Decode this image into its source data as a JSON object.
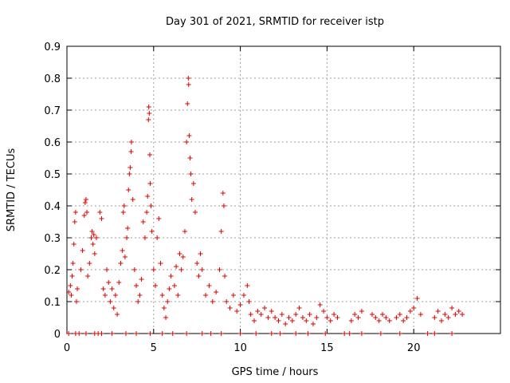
{
  "chart_data": {
    "type": "scatter",
    "title": "Day 301 of 2021, SRMTID for receiver istp",
    "xlabel": "GPS time / hours",
    "ylabel": "SRMTID / TECUs",
    "xlim": [
      0,
      25
    ],
    "ylim": [
      0,
      0.9
    ],
    "xticks": [
      0,
      5,
      10,
      15,
      20
    ],
    "xtick_labels": [
      "0",
      "5",
      "10",
      "15",
      "20"
    ],
    "yticks": [
      0,
      0.1,
      0.2,
      0.3,
      0.4,
      0.5,
      0.6,
      0.7,
      0.8,
      0.9
    ],
    "ytick_labels": [
      "0",
      "0.1",
      "0.2",
      "0.3",
      "0.4",
      "0.5",
      "0.6",
      "0.7",
      "0.8",
      "0.9"
    ],
    "grid": true,
    "marker": "+",
    "color": "#e00000",
    "series": [
      {
        "name": "SRMTID",
        "points": [
          [
            0.1,
            0.13
          ],
          [
            0.2,
            0.15
          ],
          [
            0.25,
            0.12
          ],
          [
            0.3,
            0.18
          ],
          [
            0.35,
            0.22
          ],
          [
            0.4,
            0.28
          ],
          [
            0.45,
            0.35
          ],
          [
            0.5,
            0.38
          ],
          [
            0.55,
            0.1
          ],
          [
            0.6,
            0.14
          ],
          [
            0.8,
            0.2
          ],
          [
            0.9,
            0.26
          ],
          [
            1.0,
            0.37
          ],
          [
            1.05,
            0.41
          ],
          [
            1.1,
            0.42
          ],
          [
            1.15,
            0.38
          ],
          [
            1.2,
            0.18
          ],
          [
            1.3,
            0.22
          ],
          [
            1.4,
            0.3
          ],
          [
            1.45,
            0.32
          ],
          [
            1.5,
            0.28
          ],
          [
            1.55,
            0.31
          ],
          [
            1.6,
            0.25
          ],
          [
            1.7,
            0.3
          ],
          [
            1.9,
            0.38
          ],
          [
            2.0,
            0.36
          ],
          [
            2.1,
            0.14
          ],
          [
            2.2,
            0.12
          ],
          [
            2.3,
            0.2
          ],
          [
            2.4,
            0.16
          ],
          [
            2.5,
            0.1
          ],
          [
            2.6,
            0.14
          ],
          [
            2.7,
            0.08
          ],
          [
            2.8,
            0.12
          ],
          [
            2.9,
            0.06
          ],
          [
            3.0,
            0.16
          ],
          [
            3.1,
            0.22
          ],
          [
            3.2,
            0.26
          ],
          [
            3.25,
            0.38
          ],
          [
            3.3,
            0.4
          ],
          [
            3.35,
            0.24
          ],
          [
            3.45,
            0.3
          ],
          [
            3.5,
            0.33
          ],
          [
            3.55,
            0.45
          ],
          [
            3.6,
            0.5
          ],
          [
            3.65,
            0.52
          ],
          [
            3.7,
            0.57
          ],
          [
            3.72,
            0.6
          ],
          [
            3.8,
            0.42
          ],
          [
            3.9,
            0.2
          ],
          [
            4.0,
            0.15
          ],
          [
            4.1,
            0.1
          ],
          [
            4.2,
            0.12
          ],
          [
            4.3,
            0.17
          ],
          [
            4.4,
            0.35
          ],
          [
            4.5,
            0.3
          ],
          [
            4.6,
            0.38
          ],
          [
            4.65,
            0.43
          ],
          [
            4.7,
            0.67
          ],
          [
            4.72,
            0.71
          ],
          [
            4.75,
            0.69
          ],
          [
            4.78,
            0.56
          ],
          [
            4.8,
            0.47
          ],
          [
            4.85,
            0.4
          ],
          [
            4.9,
            0.32
          ],
          [
            5.0,
            0.2
          ],
          [
            5.1,
            0.15
          ],
          [
            5.2,
            0.3
          ],
          [
            5.3,
            0.36
          ],
          [
            5.4,
            0.22
          ],
          [
            5.5,
            0.12
          ],
          [
            5.6,
            0.08
          ],
          [
            5.7,
            0.05
          ],
          [
            5.8,
            0.1
          ],
          [
            5.9,
            0.14
          ],
          [
            6.0,
            0.18
          ],
          [
            6.2,
            0.15
          ],
          [
            6.3,
            0.21
          ],
          [
            6.4,
            0.12
          ],
          [
            6.5,
            0.25
          ],
          [
            6.6,
            0.2
          ],
          [
            6.7,
            0.24
          ],
          [
            6.8,
            0.32
          ],
          [
            6.9,
            0.6
          ],
          [
            6.95,
            0.72
          ],
          [
            7.0,
            0.8
          ],
          [
            7.02,
            0.78
          ],
          [
            7.05,
            0.62
          ],
          [
            7.1,
            0.55
          ],
          [
            7.15,
            0.5
          ],
          [
            7.2,
            0.42
          ],
          [
            7.3,
            0.47
          ],
          [
            7.4,
            0.38
          ],
          [
            7.5,
            0.22
          ],
          [
            7.6,
            0.18
          ],
          [
            7.7,
            0.25
          ],
          [
            7.8,
            0.2
          ],
          [
            8.0,
            0.12
          ],
          [
            8.2,
            0.15
          ],
          [
            8.4,
            0.1
          ],
          [
            8.6,
            0.13
          ],
          [
            8.8,
            0.2
          ],
          [
            8.9,
            0.32
          ],
          [
            9.0,
            0.44
          ],
          [
            9.05,
            0.4
          ],
          [
            9.1,
            0.18
          ],
          [
            9.2,
            0.1
          ],
          [
            9.4,
            0.08
          ],
          [
            9.6,
            0.12
          ],
          [
            9.8,
            0.07
          ],
          [
            10.0,
            0.09
          ],
          [
            10.2,
            0.12
          ],
          [
            10.4,
            0.15
          ],
          [
            10.5,
            0.1
          ],
          [
            10.6,
            0.06
          ],
          [
            10.8,
            0.04
          ],
          [
            11.0,
            0.07
          ],
          [
            11.2,
            0.06
          ],
          [
            11.4,
            0.08
          ],
          [
            11.6,
            0.05
          ],
          [
            11.8,
            0.07
          ],
          [
            12.0,
            0.05
          ],
          [
            12.2,
            0.04
          ],
          [
            12.4,
            0.06
          ],
          [
            12.6,
            0.03
          ],
          [
            12.8,
            0.05
          ],
          [
            13.0,
            0.04
          ],
          [
            13.2,
            0.06
          ],
          [
            13.4,
            0.08
          ],
          [
            13.6,
            0.05
          ],
          [
            13.8,
            0.04
          ],
          [
            14.0,
            0.06
          ],
          [
            14.2,
            0.03
          ],
          [
            14.4,
            0.05
          ],
          [
            14.6,
            0.09
          ],
          [
            14.8,
            0.07
          ],
          [
            15.0,
            0.05
          ],
          [
            15.2,
            0.04
          ],
          [
            15.4,
            0.06
          ],
          [
            15.6,
            0.05
          ],
          [
            16.4,
            0.04
          ],
          [
            16.6,
            0.06
          ],
          [
            16.8,
            0.05
          ],
          [
            17.0,
            0.07
          ],
          [
            17.6,
            0.06
          ],
          [
            17.8,
            0.05
          ],
          [
            18.0,
            0.04
          ],
          [
            18.2,
            0.06
          ],
          [
            18.4,
            0.05
          ],
          [
            18.6,
            0.04
          ],
          [
            19.0,
            0.05
          ],
          [
            19.2,
            0.06
          ],
          [
            19.4,
            0.04
          ],
          [
            19.6,
            0.05
          ],
          [
            19.8,
            0.07
          ],
          [
            20.0,
            0.08
          ],
          [
            20.2,
            0.11
          ],
          [
            20.4,
            0.06
          ],
          [
            21.2,
            0.05
          ],
          [
            21.4,
            0.07
          ],
          [
            21.6,
            0.04
          ],
          [
            21.8,
            0.06
          ],
          [
            22.0,
            0.05
          ],
          [
            22.2,
            0.08
          ],
          [
            22.4,
            0.06
          ],
          [
            22.6,
            0.07
          ],
          [
            22.8,
            0.06
          ],
          [
            0.1,
            0.0
          ],
          [
            0.5,
            0.0
          ],
          [
            0.7,
            0.0
          ],
          [
            1.1,
            0.0
          ],
          [
            1.6,
            0.0
          ],
          [
            1.8,
            0.0
          ],
          [
            2.0,
            0.0
          ],
          [
            2.6,
            0.0
          ],
          [
            3.4,
            0.0
          ],
          [
            4.0,
            0.0
          ],
          [
            4.8,
            0.0
          ],
          [
            5.5,
            0.0
          ],
          [
            6.1,
            0.0
          ],
          [
            6.9,
            0.0
          ],
          [
            7.8,
            0.0
          ],
          [
            8.3,
            0.0
          ],
          [
            8.9,
            0.0
          ],
          [
            10.0,
            0.0
          ],
          [
            10.9,
            0.0
          ],
          [
            11.8,
            0.0
          ],
          [
            12.3,
            0.0
          ],
          [
            13.2,
            0.0
          ],
          [
            13.9,
            0.0
          ],
          [
            14.9,
            0.0
          ],
          [
            16.0,
            0.0
          ],
          [
            16.3,
            0.0
          ],
          [
            17.0,
            0.0
          ],
          [
            18.1,
            0.0
          ],
          [
            19.2,
            0.0
          ],
          [
            20.8,
            0.0
          ],
          [
            21.2,
            0.0
          ],
          [
            22.2,
            0.0
          ]
        ]
      }
    ]
  }
}
